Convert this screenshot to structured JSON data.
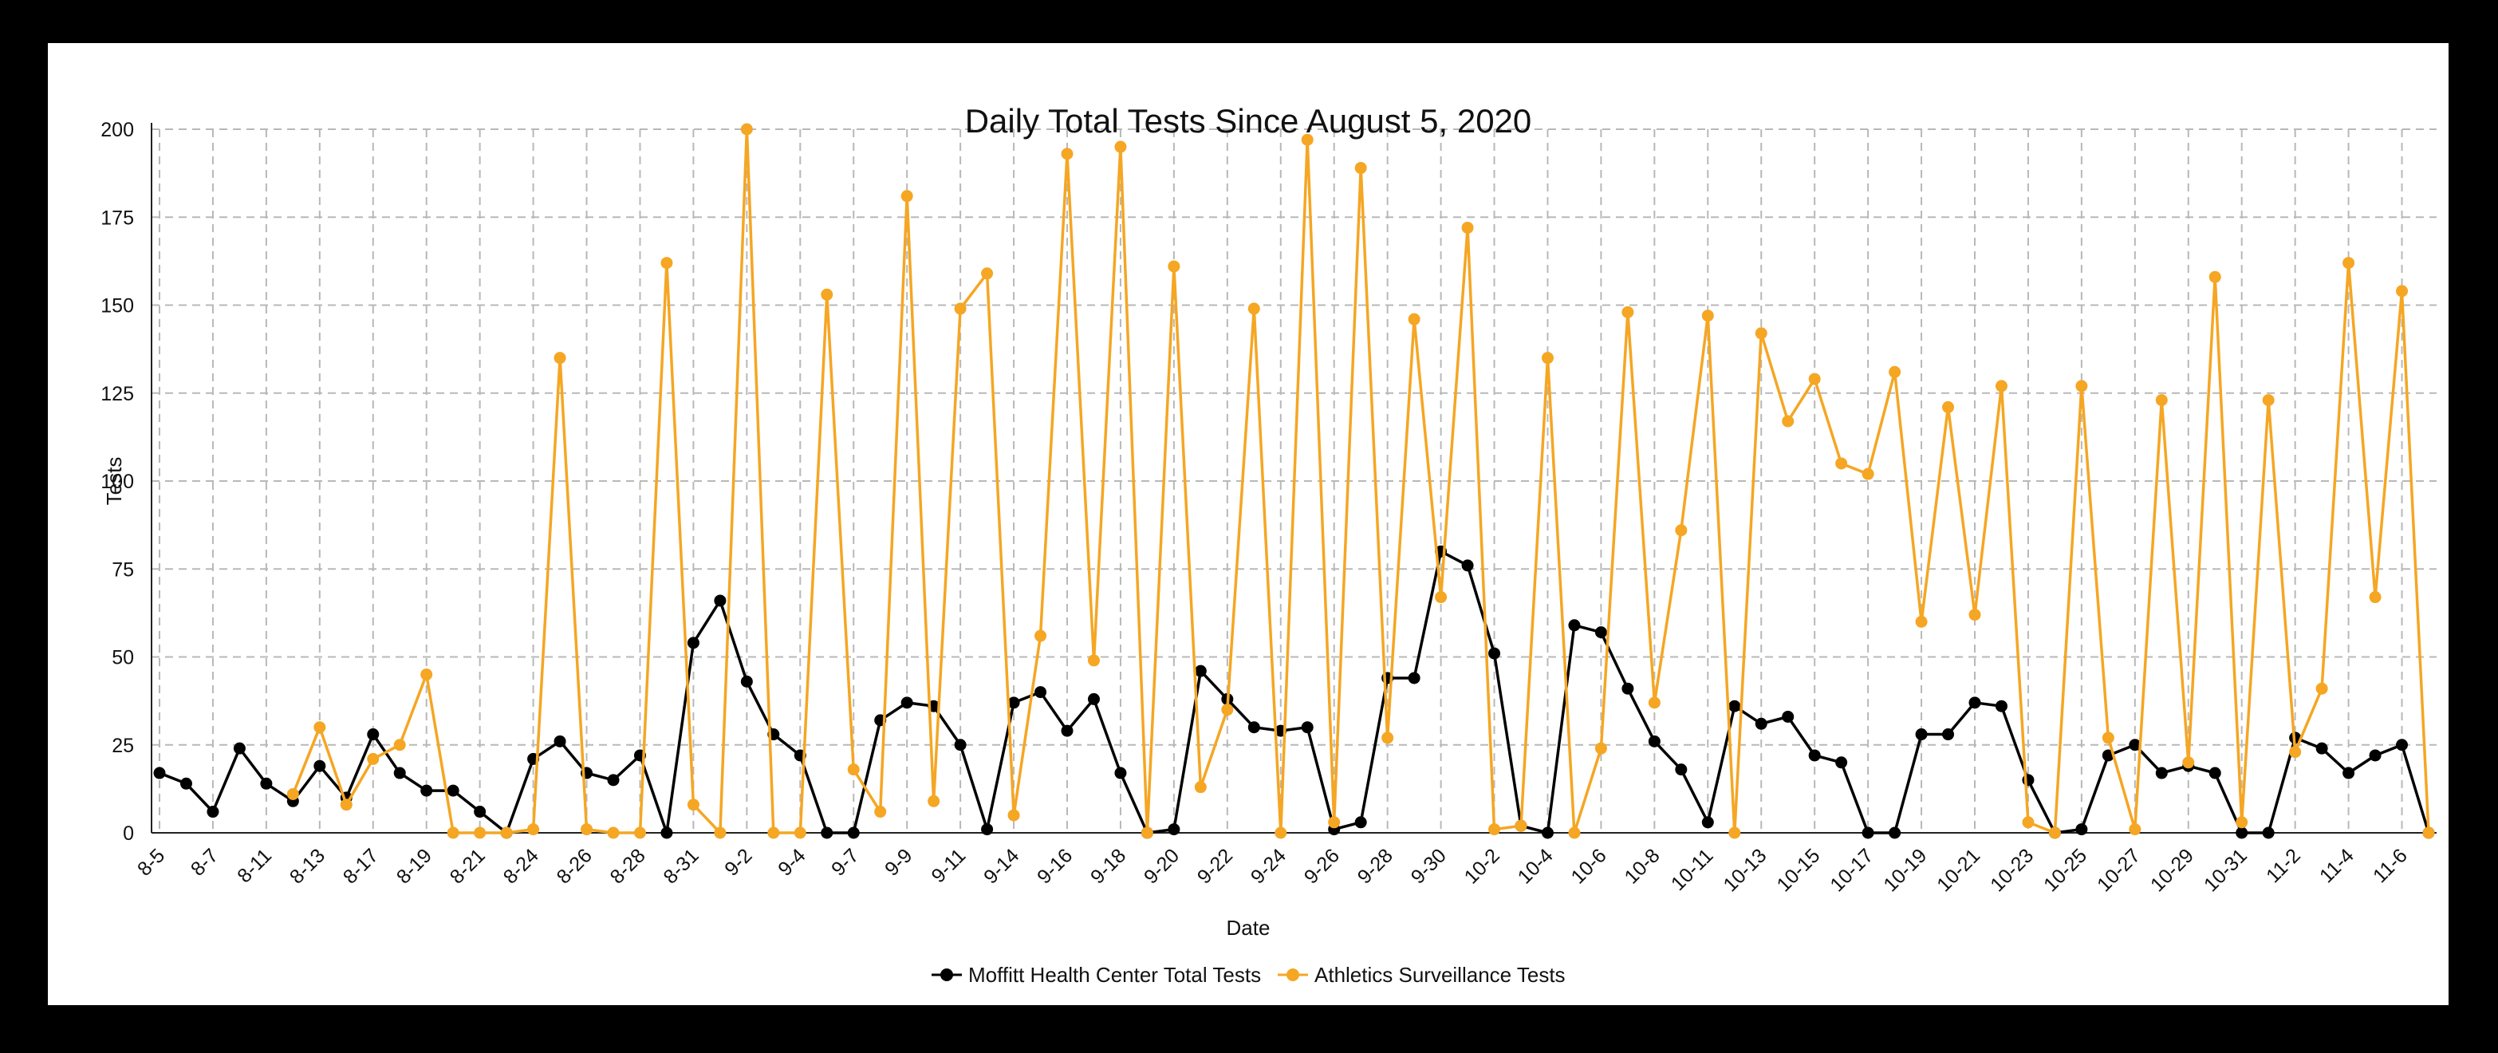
{
  "chart_data": {
    "type": "line",
    "title": "Daily Total Tests Since August 5, 2020",
    "xlabel": "Date",
    "ylabel": "Tests",
    "ylim": [
      0,
      200
    ],
    "yticks": [
      0,
      25,
      50,
      75,
      100,
      125,
      150,
      175,
      200
    ],
    "grid": true,
    "legend_position": "bottom",
    "x_tick_labels": [
      "8-5",
      "8-7",
      "8-11",
      "8-13",
      "8-17",
      "8-19",
      "8-21",
      "8-24",
      "8-26",
      "8-28",
      "8-31",
      "9-2",
      "9-4",
      "9-7",
      "9-9",
      "9-11",
      "9-14",
      "9-16",
      "9-18",
      "9-20",
      "9-22",
      "9-24",
      "9-26",
      "9-28",
      "9-30",
      "10-2",
      "10-4",
      "10-6",
      "10-8",
      "10-11",
      "10-13",
      "10-15",
      "10-17",
      "10-19",
      "10-21",
      "10-23",
      "10-25",
      "10-27",
      "10-29",
      "10-31",
      "11-2",
      "11-4",
      "11-6"
    ],
    "series": [
      {
        "name": "Moffitt Health Center Total Tests",
        "color": "#000000",
        "values": [
          17,
          14,
          6,
          24,
          14,
          9,
          19,
          10,
          28,
          17,
          12,
          12,
          6,
          0,
          21,
          26,
          17,
          15,
          22,
          0,
          54,
          66,
          43,
          28,
          22,
          0,
          0,
          32,
          37,
          36,
          25,
          1,
          37,
          40,
          29,
          38,
          17,
          0,
          1,
          46,
          38,
          30,
          29,
          30,
          1,
          3,
          44,
          44,
          80,
          76,
          51,
          2,
          0,
          59,
          57,
          41,
          26,
          18,
          3,
          36,
          31,
          33,
          22,
          20,
          0,
          0,
          28,
          28,
          37,
          36,
          15,
          0,
          1,
          22,
          25,
          17,
          19,
          17,
          0,
          0,
          27,
          24,
          17,
          22,
          25,
          0
        ]
      },
      {
        "name": "Athletics Surveillance Tests",
        "color": "#F5A623",
        "start_index": 5,
        "values": [
          11,
          30,
          8,
          21,
          25,
          45,
          0,
          0,
          0,
          1,
          135,
          1,
          0,
          0,
          162,
          8,
          0,
          200,
          0,
          0,
          153,
          18,
          6,
          181,
          9,
          149,
          159,
          5,
          56,
          193,
          49,
          195,
          0,
          161,
          13,
          35,
          149,
          0,
          197,
          3,
          189,
          27,
          146,
          67,
          172,
          1,
          2,
          135,
          0,
          24,
          148,
          37,
          86,
          147,
          0,
          142,
          117,
          129,
          105,
          102,
          131,
          60,
          121,
          62,
          127,
          3,
          0,
          127,
          27,
          1,
          123,
          20,
          158,
          3,
          123,
          23,
          41,
          162,
          67,
          154,
          0
        ]
      }
    ]
  }
}
